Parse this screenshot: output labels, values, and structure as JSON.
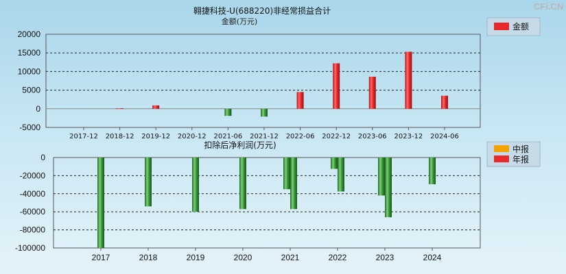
{
  "watermark": "CFi.CN",
  "chart_data": [
    {
      "type": "bar",
      "title": "翱捷科技-U(688220)非经常损益合计",
      "subtitle": "金额(万元)",
      "categories": [
        "2017-12",
        "2018-12",
        "2019-12",
        "2020-12",
        "2021-06",
        "2021-12",
        "2022-06",
        "2022-12",
        "2023-06",
        "2023-12",
        "2024-06"
      ],
      "series": [
        {
          "name": "金额",
          "color": "#e8282b",
          "values": [
            0,
            150,
            900,
            0,
            -1900,
            -2100,
            4500,
            12200,
            8600,
            15300,
            3500
          ]
        }
      ],
      "ylim": [
        -5000,
        20000
      ],
      "yticks": [
        20000,
        15000,
        10000,
        5000,
        0,
        -5000
      ],
      "ytick_labels": [
        "20000",
        "15000",
        "10000",
        "5000",
        "0",
        "-5000"
      ],
      "grid": true,
      "legend": "top-right"
    },
    {
      "type": "bar",
      "title": "扣除后净利润(万元)",
      "categories": [
        "2017",
        "2018",
        "2019",
        "2020",
        "2021",
        "2022",
        "2023",
        "2024"
      ],
      "series": [
        {
          "name": "中报",
          "color": "#f5a300",
          "values": [
            null,
            null,
            null,
            null,
            -35000,
            -12500,
            -42000,
            -29500
          ]
        },
        {
          "name": "年报",
          "color": "#e8282b",
          "values": [
            -100000,
            -54000,
            -60000,
            -57000,
            -57000,
            -37500,
            -66000,
            null
          ]
        }
      ],
      "ylim": [
        -100000,
        0
      ],
      "yticks": [
        0,
        -20000,
        -40000,
        -60000,
        -80000,
        -100000
      ],
      "ytick_labels": [
        "0",
        "-20000",
        "-40000",
        "-60000",
        "-80000",
        "-100000"
      ],
      "grid": true,
      "legend": "top-right"
    }
  ]
}
